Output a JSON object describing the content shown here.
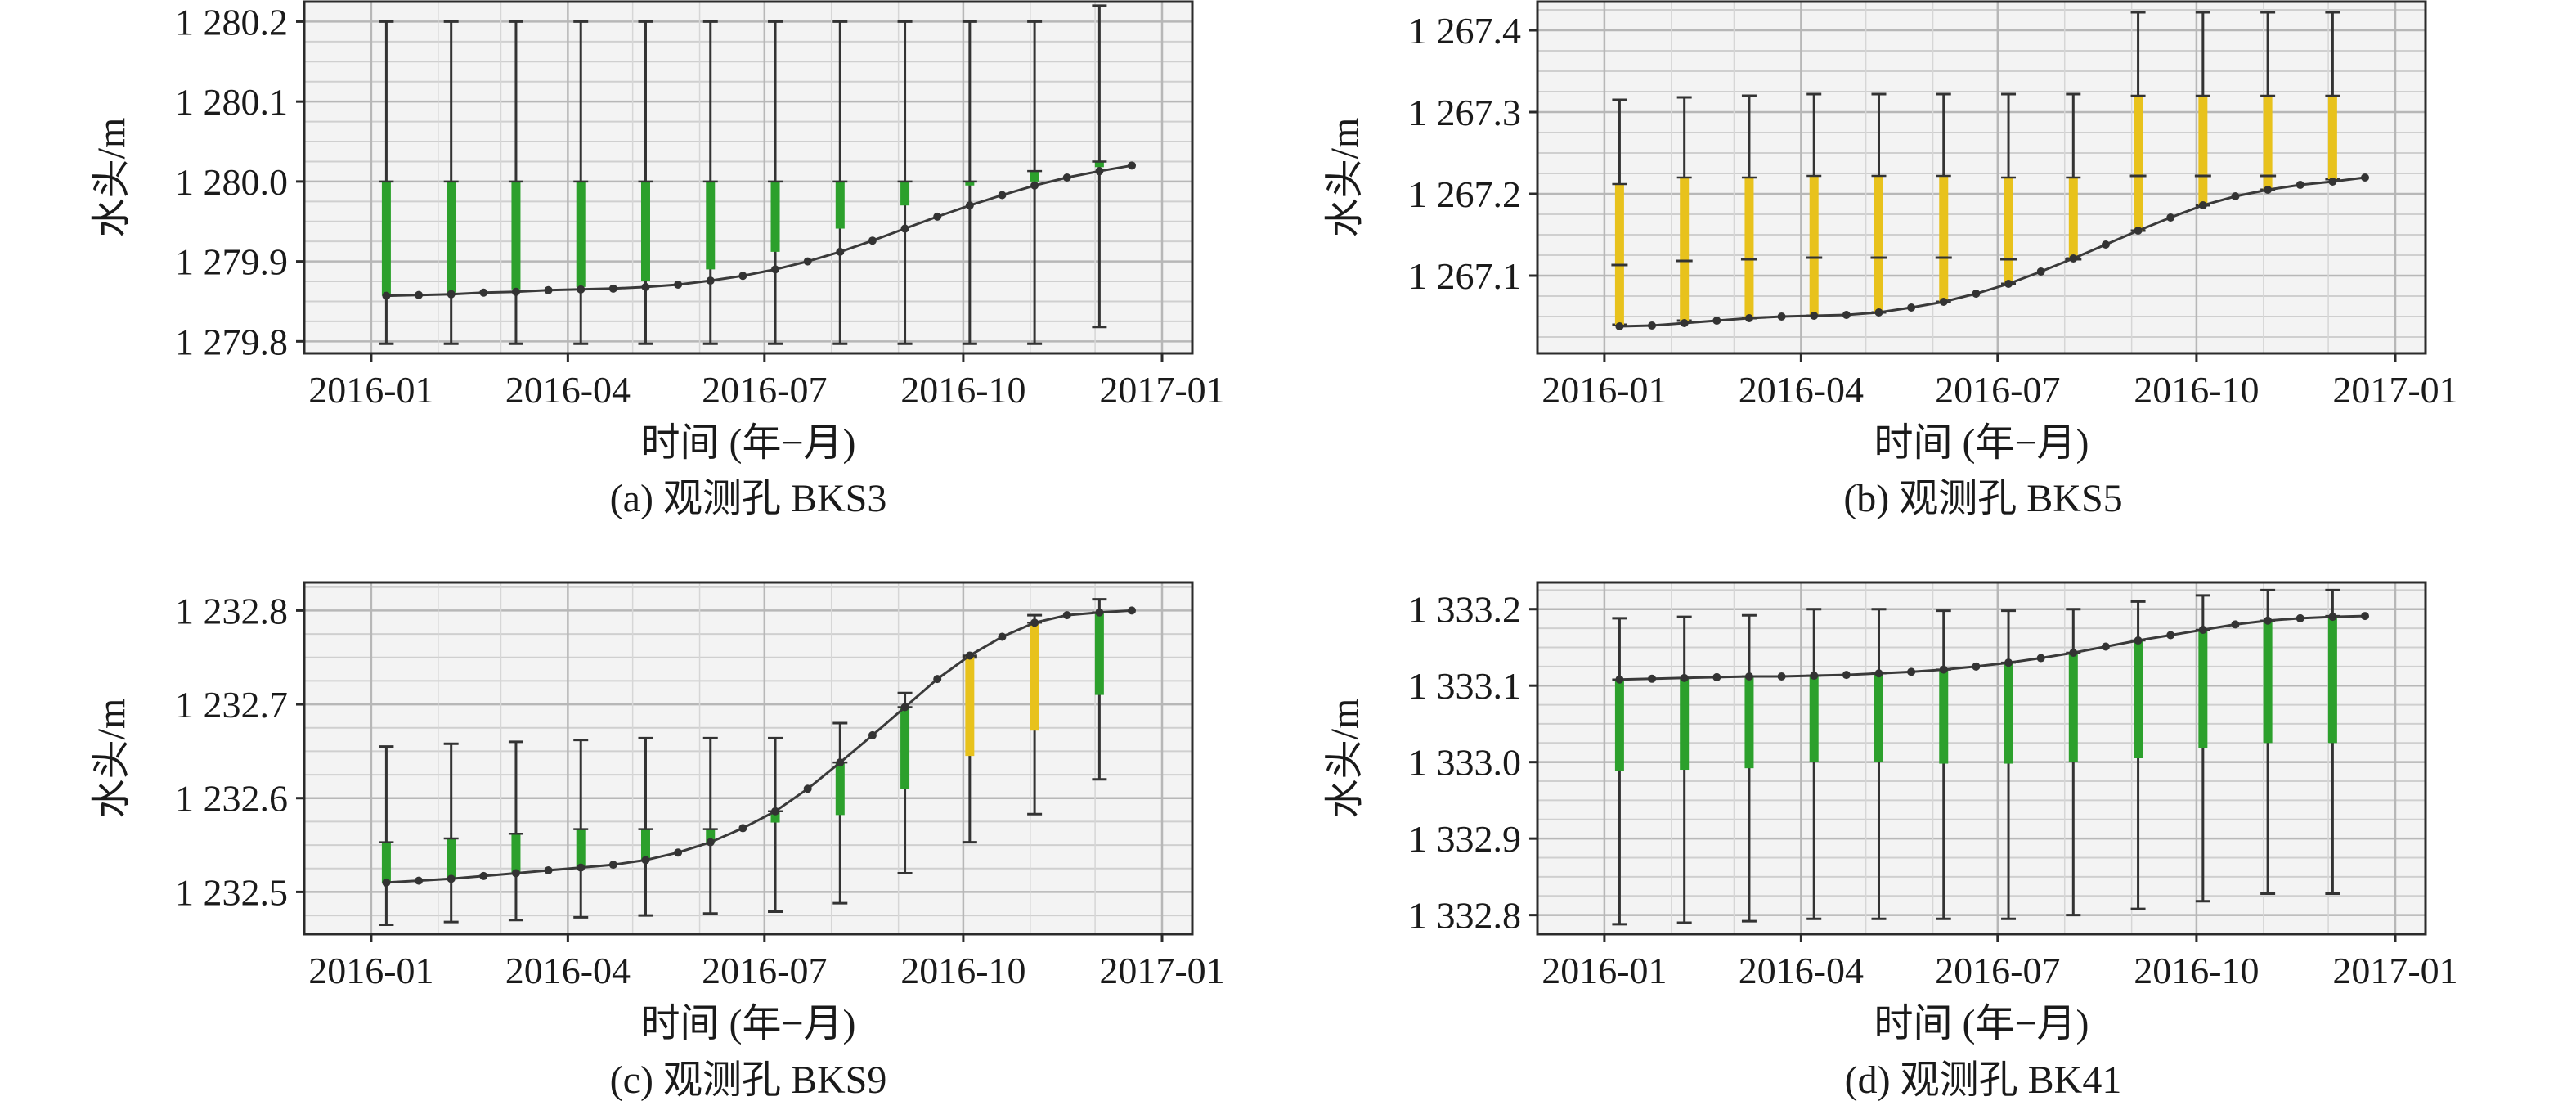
{
  "figure": {
    "panels": [
      {
        "caption": "(a) 观测孔 BKS3"
      },
      {
        "caption": "(b) 观测孔 BKS5"
      },
      {
        "caption": "(c) 观测孔 BKS9"
      },
      {
        "caption": "(d) 观测孔 BK41"
      }
    ]
  },
  "colors": {
    "green": "#2ca02c",
    "yellow": "#e8c21c",
    "line": "#3a3a3a",
    "grid": "#b7b7b7",
    "band": "#f3f3f3"
  },
  "chart_data": [
    {
      "type": "line",
      "title": "(a) 观测孔 BKS3",
      "xlabel": "时间 (年−月)",
      "ylabel": "水头/m",
      "x_ticks": [
        "2016-01",
        "2016-04",
        "2016-07",
        "2016-10",
        "2017-01"
      ],
      "y_ticks": [
        "1 279.8",
        "1 279.9",
        "1 280.0",
        "1 280.1",
        "1 280.2"
      ],
      "y_tick_values": [
        1279.8,
        1279.9,
        1280.0,
        1280.1,
        1280.2
      ],
      "ylim": [
        1279.785,
        1280.225
      ],
      "xlim": [
        "2015-12-01",
        "2017-01-15"
      ],
      "grid": true,
      "series": [
        {
          "x": [
            "2016-01-08",
            "2016-01-23",
            "2016-02-07",
            "2016-02-22",
            "2016-03-08",
            "2016-03-23",
            "2016-04-07",
            "2016-04-22",
            "2016-05-07",
            "2016-05-22",
            "2016-06-06",
            "2016-06-21",
            "2016-07-06",
            "2016-07-21",
            "2016-08-05",
            "2016-08-20",
            "2016-09-04",
            "2016-09-19",
            "2016-10-04",
            "2016-10-19",
            "2016-11-03",
            "2016-11-18",
            "2016-12-03",
            "2016-12-18"
          ],
          "values": [
            1279.857,
            1279.858,
            1279.859,
            1279.861,
            1279.862,
            1279.864,
            1279.865,
            1279.866,
            1279.868,
            1279.871,
            1279.876,
            1279.882,
            1279.89,
            1279.9,
            1279.912,
            1279.926,
            1279.941,
            1279.956,
            1279.97,
            1279.983,
            1279.995,
            1280.005,
            1280.013,
            1280.02
          ]
        }
      ],
      "intervals": {
        "x": [
          "2016-01-08",
          "2016-02-07",
          "2016-03-08",
          "2016-04-07",
          "2016-05-07",
          "2016-06-06",
          "2016-07-06",
          "2016-08-05",
          "2016-09-04",
          "2016-10-04",
          "2016-11-03",
          "2016-12-03"
        ],
        "low": [
          1279.797,
          1279.797,
          1279.797,
          1279.797,
          1279.797,
          1279.797,
          1279.797,
          1279.797,
          1279.797,
          1279.797,
          1279.797,
          1279.818
        ],
        "high": [
          1280.2,
          1280.2,
          1280.2,
          1280.2,
          1280.2,
          1280.2,
          1280.2,
          1280.2,
          1280.2,
          1280.2,
          1280.2,
          1280.22
        ],
        "box_low": [
          1279.857,
          1279.861,
          1279.865,
          1279.868,
          1279.876,
          1279.89,
          1279.912,
          1279.941,
          1279.97,
          1279.995,
          1280.0,
          1280.018
        ],
        "box_high": [
          1280.0,
          1280.0,
          1280.0,
          1280.0,
          1280.0,
          1280.0,
          1280.0,
          1280.0,
          1280.0,
          1280.0,
          1280.013,
          1280.025
        ],
        "box_color": [
          "green",
          "green",
          "green",
          "green",
          "green",
          "green",
          "green",
          "green",
          "green",
          "green",
          "green",
          "green"
        ]
      }
    },
    {
      "type": "line",
      "title": "(b) 观测孔 BKS5",
      "xlabel": "时间 (年−月)",
      "ylabel": "水头/m",
      "x_ticks": [
        "2016-01",
        "2016-04",
        "2016-07",
        "2016-10",
        "2017-01"
      ],
      "y_ticks": [
        "1 267.1",
        "1 267.2",
        "1 267.3",
        "1 267.4"
      ],
      "y_tick_values": [
        1267.1,
        1267.2,
        1267.3,
        1267.4
      ],
      "ylim": [
        1267.005,
        1267.435
      ],
      "xlim": [
        "2015-12-01",
        "2017-01-15"
      ],
      "grid": true,
      "series": [
        {
          "x": [
            "2016-01-08",
            "2016-01-23",
            "2016-02-07",
            "2016-02-22",
            "2016-03-08",
            "2016-03-23",
            "2016-04-07",
            "2016-04-22",
            "2016-05-07",
            "2016-05-22",
            "2016-06-06",
            "2016-06-21",
            "2016-07-06",
            "2016-07-21",
            "2016-08-05",
            "2016-08-20",
            "2016-09-04",
            "2016-09-19",
            "2016-10-04",
            "2016-10-19",
            "2016-11-03",
            "2016-11-18",
            "2016-12-03",
            "2016-12-18"
          ],
          "values": [
            1267.038,
            1267.039,
            1267.042,
            1267.045,
            1267.048,
            1267.05,
            1267.051,
            1267.052,
            1267.055,
            1267.061,
            1267.068,
            1267.078,
            1267.09,
            1267.105,
            1267.121,
            1267.138,
            1267.155,
            1267.171,
            1267.186,
            1267.197,
            1267.205,
            1267.211,
            1267.215,
            1267.22
          ]
        }
      ],
      "intervals": {
        "x": [
          "2016-01-08",
          "2016-02-07",
          "2016-03-08",
          "2016-04-07",
          "2016-05-07",
          "2016-06-06",
          "2016-07-06",
          "2016-08-05",
          "2016-09-04",
          "2016-10-04",
          "2016-11-03",
          "2016-12-03"
        ],
        "low": [
          1267.04,
          1267.045,
          1267.048,
          1267.051,
          1267.055,
          1267.068,
          1267.09,
          1267.121,
          1267.155,
          1267.186,
          1267.205,
          1267.218
        ],
        "high": [
          1267.315,
          1267.318,
          1267.32,
          1267.322,
          1267.322,
          1267.322,
          1267.322,
          1267.322,
          1267.422,
          1267.422,
          1267.422,
          1267.422
        ],
        "box_low": [
          1267.04,
          1267.045,
          1267.048,
          1267.051,
          1267.055,
          1267.068,
          1267.09,
          1267.121,
          1267.155,
          1267.186,
          1267.205,
          1267.218
        ],
        "box_high": [
          1267.212,
          1267.22,
          1267.22,
          1267.222,
          1267.222,
          1267.222,
          1267.22,
          1267.22,
          1267.32,
          1267.32,
          1267.32,
          1267.32
        ],
        "median": [
          1267.113,
          1267.118,
          1267.12,
          1267.122,
          1267.122,
          1267.122,
          1267.12,
          1267.12,
          1267.222,
          1267.222,
          1267.222,
          null
        ],
        "box_color": [
          "yellow",
          "yellow",
          "yellow",
          "yellow",
          "yellow",
          "yellow",
          "yellow",
          "yellow",
          "yellow",
          "yellow",
          "yellow",
          "yellow"
        ]
      }
    },
    {
      "type": "line",
      "title": "(c) 观测孔 BKS9",
      "xlabel": "时间 (年−月)",
      "ylabel": "水头/m",
      "x_ticks": [
        "2016-01",
        "2016-04",
        "2016-07",
        "2016-10",
        "2017-01"
      ],
      "y_ticks": [
        "1 232.5",
        "1 232.6",
        "1 232.7",
        "1 232.8"
      ],
      "y_tick_values": [
        1232.5,
        1232.6,
        1232.7,
        1232.8
      ],
      "ylim": [
        1232.455,
        1232.83
      ],
      "xlim": [
        "2015-12-01",
        "2017-01-15"
      ],
      "grid": true,
      "series": [
        {
          "x": [
            "2016-01-08",
            "2016-01-23",
            "2016-02-07",
            "2016-02-22",
            "2016-03-08",
            "2016-03-23",
            "2016-04-07",
            "2016-04-22",
            "2016-05-07",
            "2016-05-22",
            "2016-06-06",
            "2016-06-21",
            "2016-07-06",
            "2016-07-21",
            "2016-08-05",
            "2016-08-20",
            "2016-09-04",
            "2016-09-19",
            "2016-10-04",
            "2016-10-19",
            "2016-11-03",
            "2016-11-18",
            "2016-12-03",
            "2016-12-18"
          ],
          "values": [
            1232.51,
            1232.512,
            1232.514,
            1232.517,
            1232.52,
            1232.523,
            1232.526,
            1232.529,
            1232.534,
            1232.542,
            1232.553,
            1232.568,
            1232.586,
            1232.61,
            1232.638,
            1232.667,
            1232.697,
            1232.727,
            1232.752,
            1232.772,
            1232.787,
            1232.795,
            1232.798,
            1232.8
          ]
        }
      ],
      "intervals": {
        "x": [
          "2016-01-08",
          "2016-02-07",
          "2016-03-08",
          "2016-04-07",
          "2016-05-07",
          "2016-06-06",
          "2016-07-06",
          "2016-08-05",
          "2016-09-04",
          "2016-10-04",
          "2016-11-03",
          "2016-12-03"
        ],
        "low": [
          1232.465,
          1232.468,
          1232.47,
          1232.473,
          1232.475,
          1232.477,
          1232.479,
          1232.488,
          1232.52,
          1232.553,
          1232.583,
          1232.62
        ],
        "high": [
          1232.655,
          1232.658,
          1232.66,
          1232.662,
          1232.664,
          1232.664,
          1232.664,
          1232.68,
          1232.712,
          1232.75,
          1232.795,
          1232.812
        ],
        "box_low": [
          1232.51,
          1232.514,
          1232.52,
          1232.526,
          1232.534,
          1232.553,
          1232.574,
          1232.582,
          1232.61,
          1232.645,
          1232.672,
          1232.71
        ],
        "box_high": [
          1232.553,
          1232.557,
          1232.562,
          1232.567,
          1232.567,
          1232.567,
          1232.586,
          1232.638,
          1232.697,
          1232.752,
          1232.787,
          1232.798
        ],
        "box_color": [
          "green",
          "green",
          "green",
          "green",
          "green",
          "green",
          "green",
          "green",
          "green",
          "yellow",
          "yellow",
          "green"
        ]
      }
    },
    {
      "type": "line",
      "title": "(d) 观测孔 BK41",
      "xlabel": "时间 (年−月)",
      "ylabel": "水头/m",
      "x_ticks": [
        "2016-01",
        "2016-04",
        "2016-07",
        "2016-10",
        "2017-01"
      ],
      "y_ticks": [
        "1 332.8",
        "1 332.9",
        "1 333.0",
        "1 333.1",
        "1 333.2"
      ],
      "y_tick_values": [
        1332.8,
        1332.9,
        1333.0,
        1333.1,
        1333.2
      ],
      "ylim": [
        1332.775,
        1333.235
      ],
      "xlim": [
        "2015-12-01",
        "2017-01-15"
      ],
      "grid": true,
      "series": [
        {
          "x": [
            "2016-01-08",
            "2016-01-23",
            "2016-02-07",
            "2016-02-22",
            "2016-03-08",
            "2016-03-23",
            "2016-04-07",
            "2016-04-22",
            "2016-05-07",
            "2016-05-22",
            "2016-06-06",
            "2016-06-21",
            "2016-07-06",
            "2016-07-21",
            "2016-08-05",
            "2016-08-20",
            "2016-09-04",
            "2016-09-19",
            "2016-10-04",
            "2016-10-19",
            "2016-11-03",
            "2016-11-18",
            "2016-12-03",
            "2016-12-18"
          ],
          "values": [
            1333.108,
            1333.109,
            1333.11,
            1333.111,
            1333.112,
            1333.112,
            1333.113,
            1333.114,
            1333.116,
            1333.118,
            1333.121,
            1333.125,
            1333.13,
            1333.136,
            1333.143,
            1333.151,
            1333.159,
            1333.166,
            1333.173,
            1333.18,
            1333.185,
            1333.188,
            1333.19,
            1333.191
          ]
        }
      ],
      "intervals": {
        "x": [
          "2016-01-08",
          "2016-02-07",
          "2016-03-08",
          "2016-04-07",
          "2016-05-07",
          "2016-06-06",
          "2016-07-06",
          "2016-08-05",
          "2016-09-04",
          "2016-10-04",
          "2016-11-03",
          "2016-12-03"
        ],
        "low": [
          1332.788,
          1332.79,
          1332.792,
          1332.795,
          1332.795,
          1332.795,
          1332.795,
          1332.8,
          1332.808,
          1332.818,
          1332.828,
          1332.828
        ],
        "high": [
          1333.188,
          1333.19,
          1333.192,
          1333.2,
          1333.2,
          1333.198,
          1333.198,
          1333.2,
          1333.21,
          1333.218,
          1333.225,
          1333.225
        ],
        "box_low": [
          1332.988,
          1332.99,
          1332.992,
          1333.0,
          1333.0,
          1332.998,
          1332.998,
          1333.0,
          1333.005,
          1333.018,
          1333.025,
          1333.025
        ],
        "box_high": [
          1333.108,
          1333.11,
          1333.112,
          1333.113,
          1333.116,
          1333.121,
          1333.13,
          1333.143,
          1333.159,
          1333.173,
          1333.185,
          1333.191
        ],
        "box_color": [
          "green",
          "green",
          "green",
          "green",
          "green",
          "green",
          "green",
          "green",
          "green",
          "green",
          "green",
          "green"
        ]
      }
    }
  ]
}
